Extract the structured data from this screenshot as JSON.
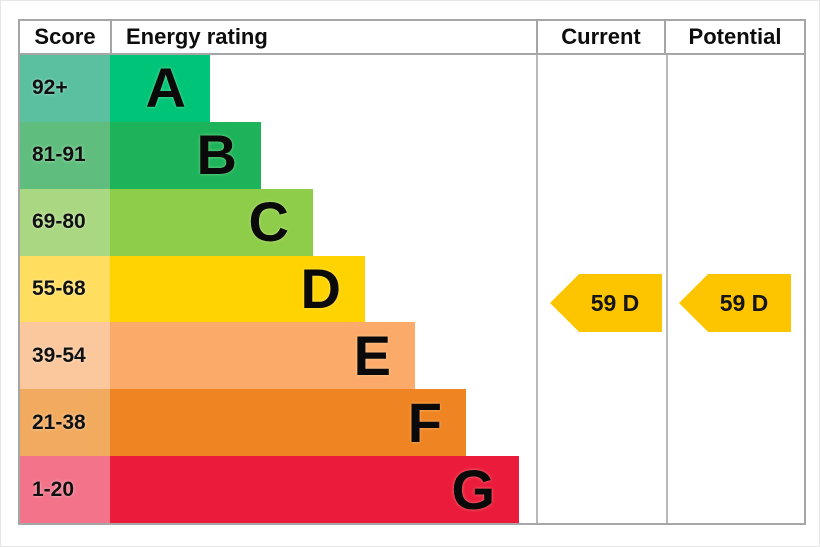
{
  "header": {
    "score": "Score",
    "energy_rating": "Energy rating",
    "current": "Current",
    "potential": "Potential"
  },
  "chart_data": {
    "type": "bar",
    "title": "Energy rating",
    "columns": [
      "Score",
      "Energy rating",
      "Current",
      "Potential"
    ],
    "legend_position": "none",
    "grid": false,
    "bands": [
      {
        "letter": "A",
        "score_range": "92+",
        "bar_color": "#00c478",
        "score_bg_color": "#5ac0a0"
      },
      {
        "letter": "B",
        "score_range": "81-91",
        "bar_color": "#1db35b",
        "score_bg_color": "#5fbe7d"
      },
      {
        "letter": "C",
        "score_range": "69-80",
        "bar_color": "#8ecd4a",
        "score_bg_color": "#aad782"
      },
      {
        "letter": "D",
        "score_range": "55-68",
        "bar_color": "#ffd300",
        "score_bg_color": "#ffde5f"
      },
      {
        "letter": "E",
        "score_range": "39-54",
        "bar_color": "#fbaa6a",
        "score_bg_color": "#fac89c"
      },
      {
        "letter": "F",
        "score_range": "21-38",
        "bar_color": "#ef8423",
        "score_bg_color": "#f2aa5f"
      },
      {
        "letter": "G",
        "score_range": "1-20",
        "bar_color": "#eb1b3c",
        "score_bg_color": "#f2738a"
      }
    ],
    "current": {
      "label": "59 D",
      "value": 59,
      "band": "D",
      "arrow_color": "#fdc500"
    },
    "potential": {
      "label": "59 D",
      "value": 59,
      "band": "D",
      "arrow_color": "#fdc500"
    }
  }
}
